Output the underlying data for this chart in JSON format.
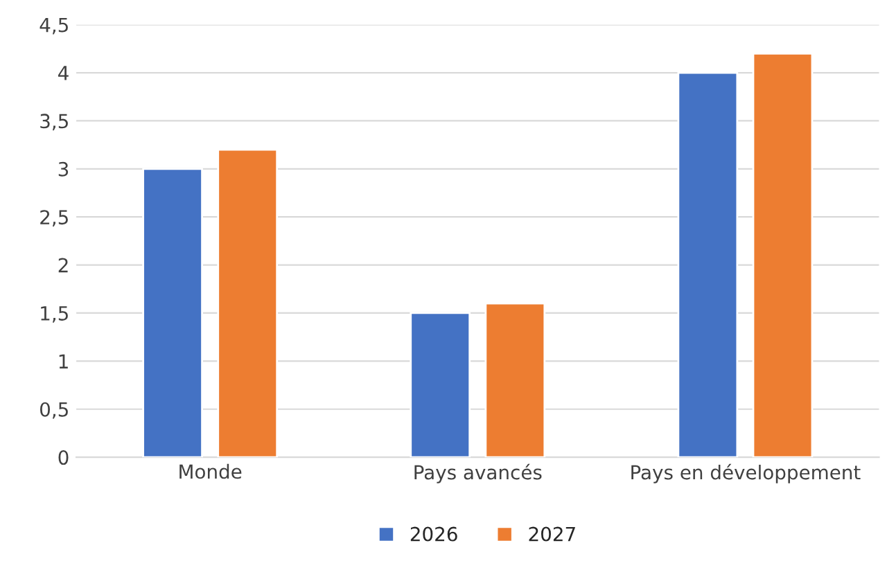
{
  "chart_data": {
    "type": "bar",
    "categories": [
      "Monde",
      "Pays avancés",
      "Pays en développement"
    ],
    "series": [
      {
        "name": "2026",
        "color": "#4472c4",
        "values": [
          3,
          1.5,
          4
        ]
      },
      {
        "name": "2027",
        "color": "#ed7d31",
        "values": [
          3.2,
          1.6,
          4.2
        ]
      }
    ],
    "ylim": [
      0,
      4.5
    ],
    "yticks": [
      0,
      {
        "value": 0.5,
        "label": "0,5"
      },
      1,
      {
        "value": 1.5,
        "label": "1,5"
      },
      2,
      {
        "value": 2.5,
        "label": "2,5"
      },
      3,
      {
        "value": 3.5,
        "label": "3,5"
      },
      4,
      {
        "value": 4.5,
        "label": "4,5"
      }
    ],
    "grid": "y",
    "legend": "bottom"
  }
}
